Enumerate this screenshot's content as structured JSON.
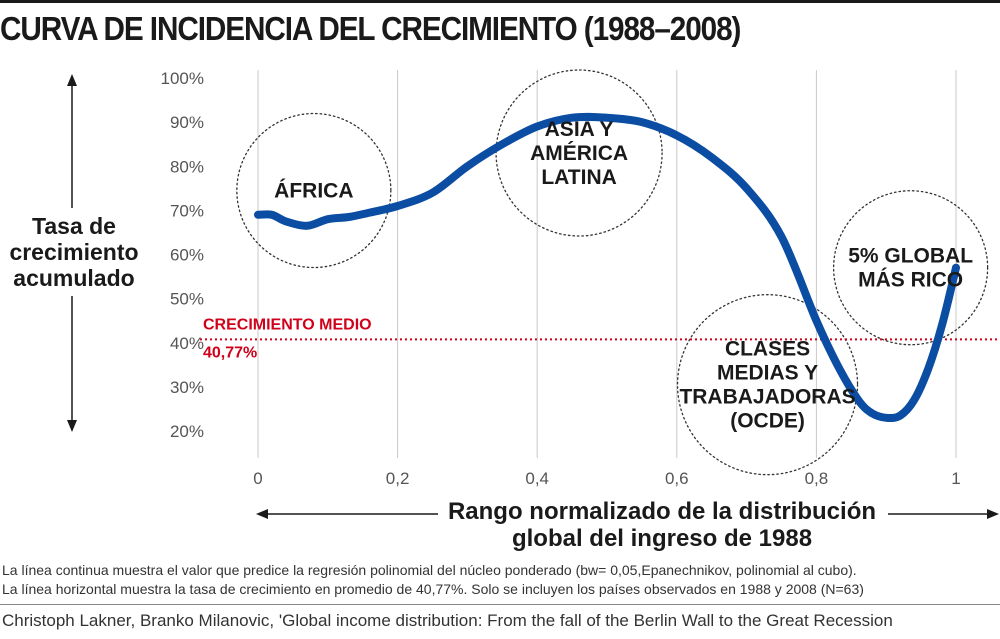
{
  "chart_data": {
    "type": "line",
    "title": "CURVA DE INCIDENCIA DEL CRECIMIENTO (1988–2008)",
    "xlabel": [
      "Rango normalizado de la distribución",
      "global del ingreso de 1988"
    ],
    "ylabel": [
      "Tasa de",
      "crecimiento",
      "acumulado"
    ],
    "xlim": [
      0,
      1
    ],
    "ylim": [
      20,
      100
    ],
    "x_ticks": [
      "0",
      "0,2",
      "0,4",
      "0,6",
      "0,8",
      "1"
    ],
    "y_ticks": [
      "20%",
      "30%",
      "40%",
      "50%",
      "60%",
      "70%",
      "80%",
      "90%",
      "100%"
    ],
    "grid": "vertical",
    "series_color": "#0b4da2",
    "x": [
      0,
      0.02,
      0.04,
      0.07,
      0.1,
      0.13,
      0.16,
      0.2,
      0.25,
      0.3,
      0.35,
      0.4,
      0.45,
      0.5,
      0.55,
      0.6,
      0.65,
      0.7,
      0.75,
      0.8,
      0.83,
      0.86,
      0.88,
      0.9,
      0.92,
      0.94,
      0.96,
      0.98,
      1.0
    ],
    "y": [
      69,
      69,
      67.5,
      66.5,
      68,
      68.5,
      69.5,
      71,
      74,
      80,
      85,
      89,
      91,
      91,
      90,
      87,
      82,
      75,
      64,
      45,
      35,
      27,
      24,
      23,
      23.5,
      27,
      34,
      44,
      57
    ],
    "reference_line": {
      "value": 40.77,
      "label": "CRECIMIENTO MEDIO",
      "value_label": "40,77%",
      "color": "#d0021b"
    },
    "annotations": [
      {
        "lines": [
          "ÁFRICA"
        ],
        "x": 0.08,
        "y": 74.5
      },
      {
        "lines": [
          "ASIA Y",
          "AMÉRICA",
          "LATINA"
        ],
        "x": 0.46,
        "y": 83
      },
      {
        "lines": [
          "CLASES",
          "MEDIAS Y",
          "TRABAJADORAS",
          "(OCDE)"
        ],
        "x": 0.73,
        "y": 30.5
      },
      {
        "lines": [
          "5% GLOBAL",
          "MÁS RICO"
        ],
        "x": 0.935,
        "y": 57
      }
    ]
  },
  "notes": [
    "La línea continua muestra el valor que predice la regresión polinomial del núcleo ponderado (bw= 0,05,Epanechnikov, polinomial al cubo).",
    "La línea horizontal muestra la tasa de crecimiento en promedio de 40,77%. Solo se incluyen los países observados en 1988 y 2008 (N=63)"
  ],
  "source": "Christoph Lakner, Branko Milanovic, 'Global income distribution: From the fall of the Berlin Wall to the Great Recession"
}
